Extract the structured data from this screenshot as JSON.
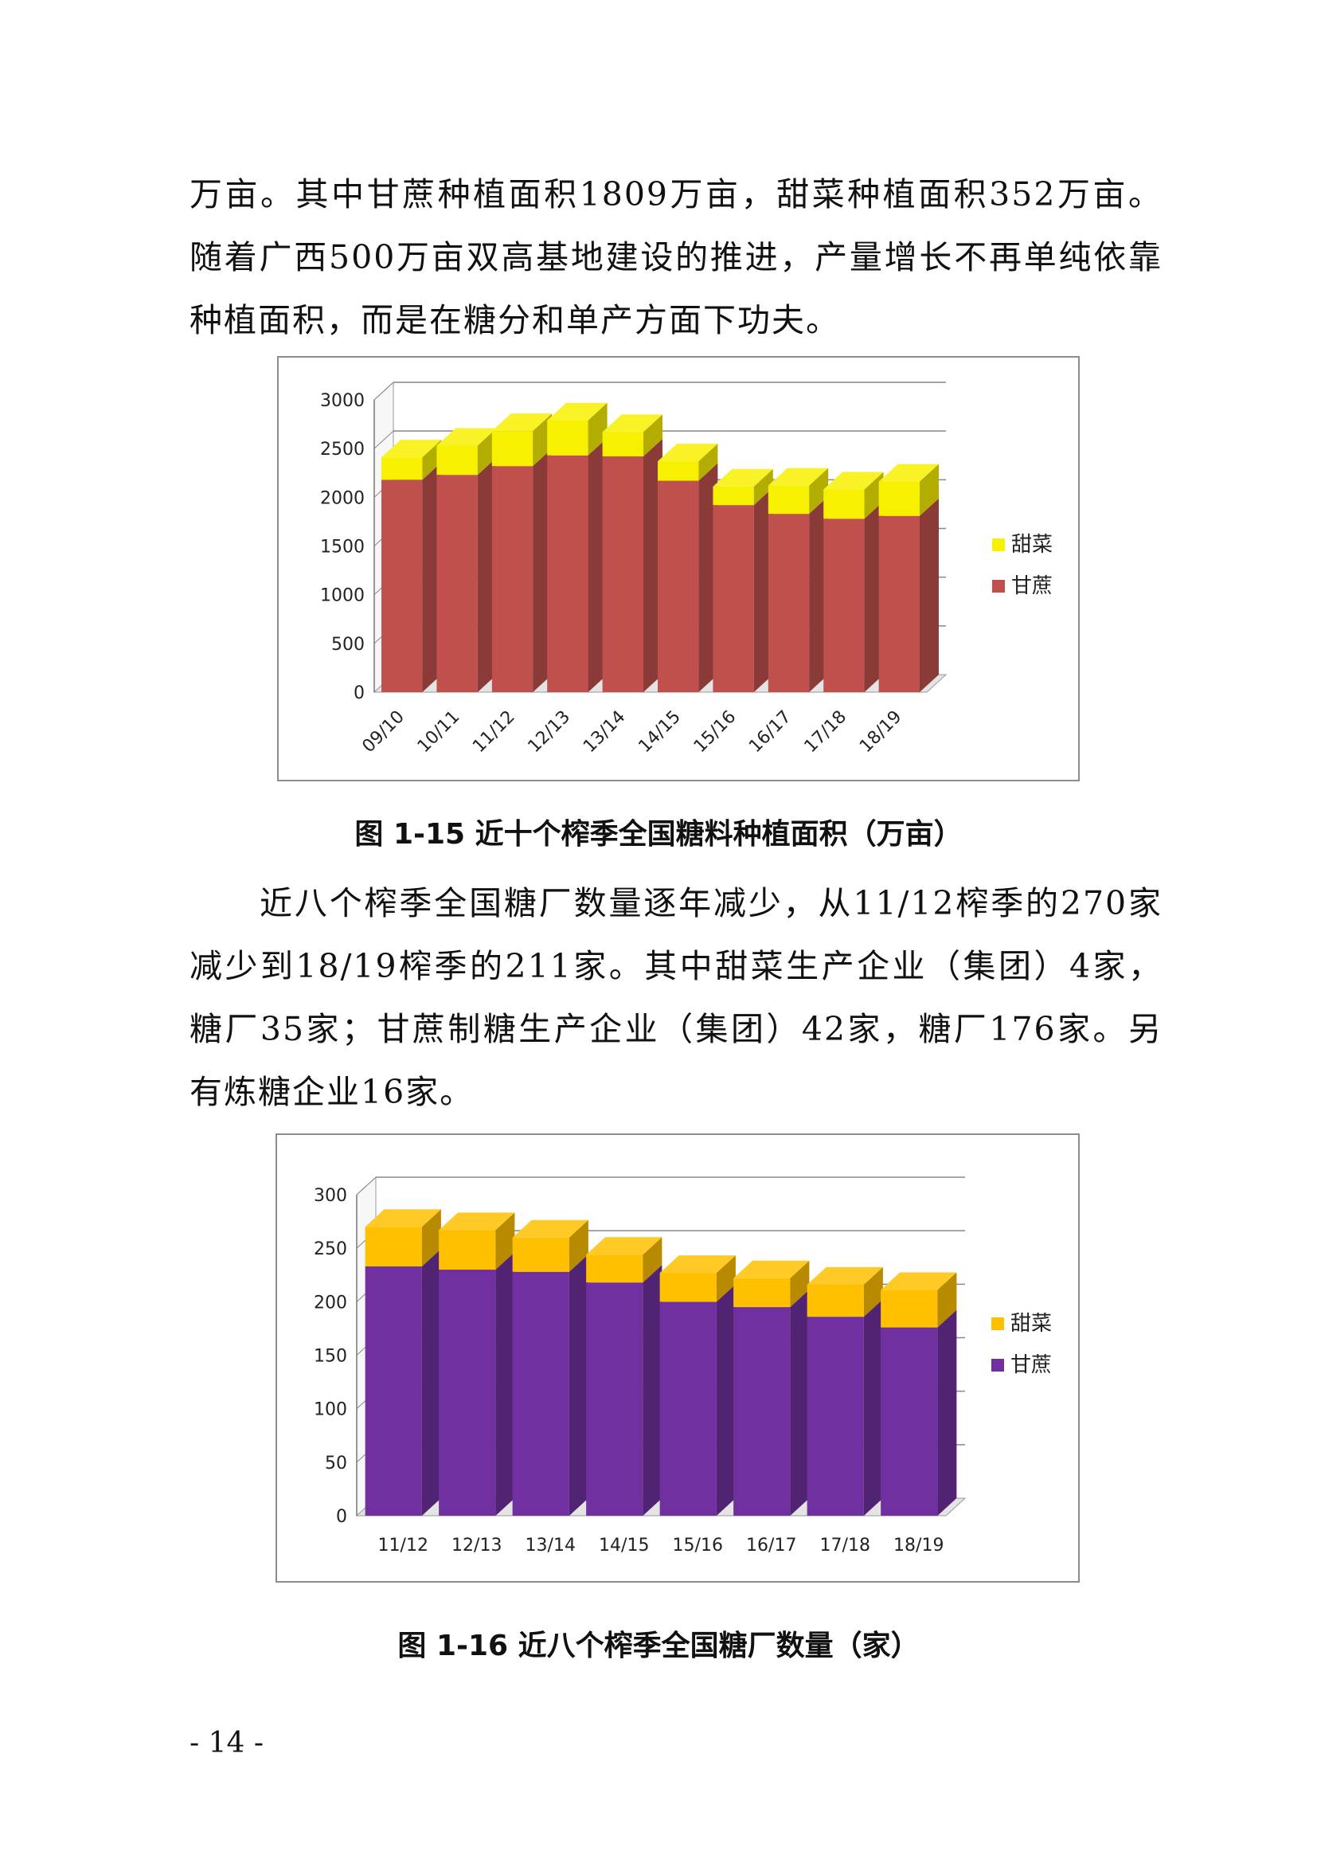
{
  "paragraphs": {
    "p1": "万亩。其中甘蔗种植面积1809万亩，甜菜种植面积352万亩。随着广西500万亩双高基地建设的推进，产量增长不再单纯依靠种植面积，而是在糖分和单产方面下功夫。",
    "p2": "近八个榨季全国糖厂数量逐年减少，从11/12榨季的270家减少到18/19榨季的211家。其中甜菜生产企业（集团）4家，糖厂35家；甘蔗制糖生产企业（集团）42家，糖厂176家。另有炼糖企业16家。"
  },
  "captions": {
    "fig1": "图 1-15  近十个榨季全国糖料种植面积（万亩）",
    "fig2": "图 1-16  近八个榨季全国糖厂数量（家）"
  },
  "page_number": "- 14 -",
  "chart_data": [
    {
      "type": "bar",
      "stacked": true,
      "style": "3d",
      "title": "",
      "categories": [
        "09/10",
        "10/11",
        "11/12",
        "12/13",
        "13/14",
        "14/15",
        "15/16",
        "16/17",
        "17/18",
        "18/19"
      ],
      "series": [
        {
          "name": "甘蔗",
          "color": "#C0504D",
          "values": [
            2180,
            2230,
            2320,
            2430,
            2420,
            2170,
            1920,
            1830,
            1780,
            1809
          ]
        },
        {
          "name": "甜菜",
          "color": "#F7F000",
          "values": [
            230,
            300,
            360,
            360,
            250,
            200,
            190,
            290,
            300,
            352
          ]
        }
      ],
      "yticks": [
        "0",
        "500",
        "1000",
        "1500",
        "2000",
        "2500",
        "3000"
      ],
      "ylim": [
        0,
        3000
      ],
      "legend": "right",
      "grid": true
    },
    {
      "type": "bar",
      "stacked": true,
      "style": "3d",
      "title": "",
      "categories": [
        "11/12",
        "12/13",
        "13/14",
        "14/15",
        "15/16",
        "16/17",
        "17/18",
        "18/19"
      ],
      "series": [
        {
          "name": "甘蔗",
          "color": "#7030A0",
          "values": [
            233,
            230,
            228,
            218,
            200,
            195,
            186,
            176
          ]
        },
        {
          "name": "甜菜",
          "color": "#FFC000",
          "values": [
            37,
            37,
            32,
            26,
            27,
            27,
            30,
            35
          ]
        }
      ],
      "yticks": [
        "0",
        "50",
        "100",
        "150",
        "200",
        "250",
        "300"
      ],
      "ylim": [
        0,
        300
      ],
      "legend": "right",
      "grid": true
    }
  ]
}
